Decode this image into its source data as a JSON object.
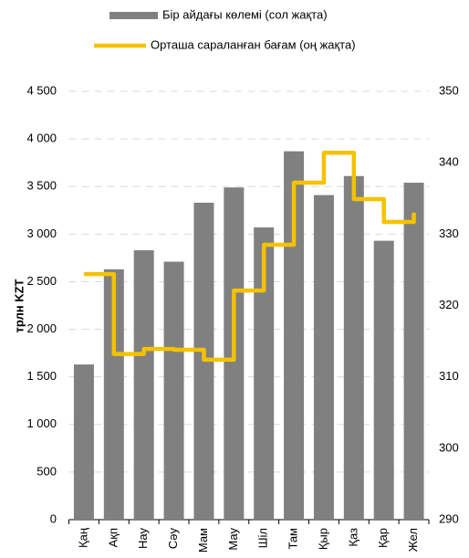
{
  "chart_data": {
    "type": "bar-line",
    "categories": [
      "Қаң",
      "Ақп",
      "Нау",
      "Сәу",
      "Мам",
      "Мау",
      "Шіл",
      "Там",
      "Қыр",
      "Қаз",
      "Қар",
      "Жел"
    ],
    "ylabel": "трлн KZT",
    "ylim": [
      0,
      4500
    ],
    "yticks": [
      0,
      500,
      {
        "value": 1000,
        "label": "1 000"
      },
      {
        "value": 1500,
        "label": "1 500"
      },
      {
        "value": 2000,
        "label": "2 000"
      },
      {
        "value": 2500,
        "label": "2 500"
      },
      {
        "value": 3000,
        "label": "3 000"
      },
      {
        "value": 3500,
        "label": "3 500"
      },
      {
        "value": 4000,
        "label": "4 000"
      },
      {
        "value": 4500,
        "label": "4 500"
      }
    ],
    "y2lim": [
      290,
      350
    ],
    "y2ticks": [
      290,
      300,
      310,
      320,
      330,
      340,
      350
    ],
    "grid": true,
    "series": [
      {
        "name": "Бір айдағы көлемі (сол жақта)",
        "color": "#808080",
        "kind": "bar",
        "values": [
          1630,
          2630,
          2830,
          2710,
          3330,
          3490,
          3070,
          3870,
          3410,
          3610,
          2930,
          3540
        ]
      },
      {
        "name": "Орташа сараланған бағам (оң жақта)",
        "color": "#f5c200",
        "kind": "step",
        "axis": "y2",
        "values": [
          324.4,
          313.2,
          313.9,
          313.8,
          312.4,
          322.1,
          328.5,
          337.2,
          341.4,
          334.9,
          331.7,
          333.0
        ]
      }
    ]
  }
}
